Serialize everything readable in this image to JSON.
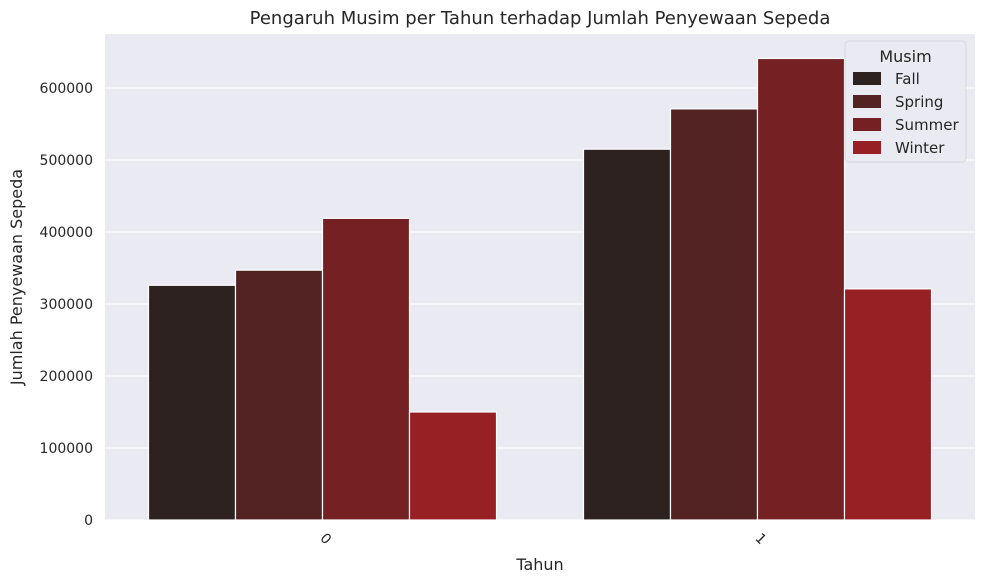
{
  "chart_data": {
    "type": "bar",
    "title": "Pengaruh Musim per Tahun terhadap Jumlah Penyewaan Sepeda",
    "xlabel": "Tahun",
    "ylabel": "Jumlah Penyewaan Sepeda",
    "categories": [
      "0",
      "1"
    ],
    "series": [
      {
        "name": "Fall",
        "color": "#2e2220",
        "values": [
          326000,
          515000
        ]
      },
      {
        "name": "Spring",
        "color": "#522322",
        "values": [
          347000,
          571000
        ]
      },
      {
        "name": "Summer",
        "color": "#752022",
        "values": [
          419000,
          641000
        ]
      },
      {
        "name": "Winter",
        "color": "#962023",
        "values": [
          150000,
          321000
        ]
      }
    ],
    "ylim": [
      0,
      675000
    ],
    "yticks": [
      0,
      100000,
      200000,
      300000,
      400000,
      500000,
      600000
    ],
    "grid": true,
    "legend": {
      "title": "Musim",
      "placement": "top-right"
    },
    "background_color": "#eaeaf2"
  }
}
